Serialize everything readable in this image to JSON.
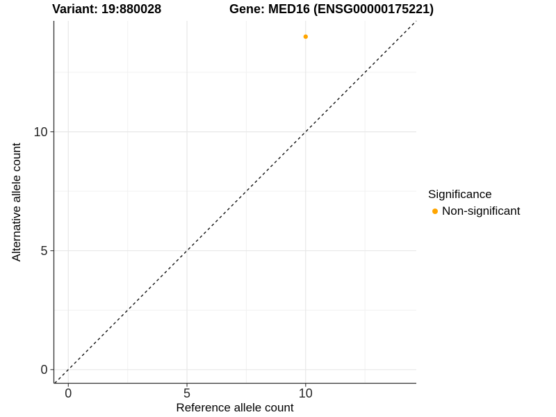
{
  "titles": {
    "variant": "Variant: 19:880028",
    "gene": "Gene: MED16 (ENSG00000175221)"
  },
  "chart_data": {
    "type": "scatter",
    "xlabel": "Reference allele count",
    "ylabel": "Alternative allele count",
    "xlim": [
      0,
      14
    ],
    "ylim": [
      0,
      14
    ],
    "x_ticks": [
      0,
      5,
      10
    ],
    "y_ticks": [
      0,
      5,
      10
    ],
    "x_minor_gridlines": [
      2.5,
      7.5,
      12.5
    ],
    "y_minor_gridlines": [
      2.5,
      7.5,
      12.5
    ],
    "grid": "on",
    "series": [
      {
        "name": "Non-significant",
        "color": "#FFA500",
        "points": [
          {
            "x": 10,
            "y": 14
          }
        ]
      }
    ],
    "reference_line": {
      "type": "identity y=x",
      "style": "dashed",
      "color": "#111111"
    },
    "legend": {
      "title": "Significance",
      "position": "right",
      "entries": [
        {
          "label": "Non-significant",
          "color": "#FFA500"
        }
      ]
    }
  },
  "colors": {
    "background": "#ffffff",
    "axis_line": "#333333",
    "tick_label": "#262626",
    "gridline_major": "#E7E7E7",
    "gridline_minor": "#F1F1F1",
    "point": "#FFA500"
  }
}
